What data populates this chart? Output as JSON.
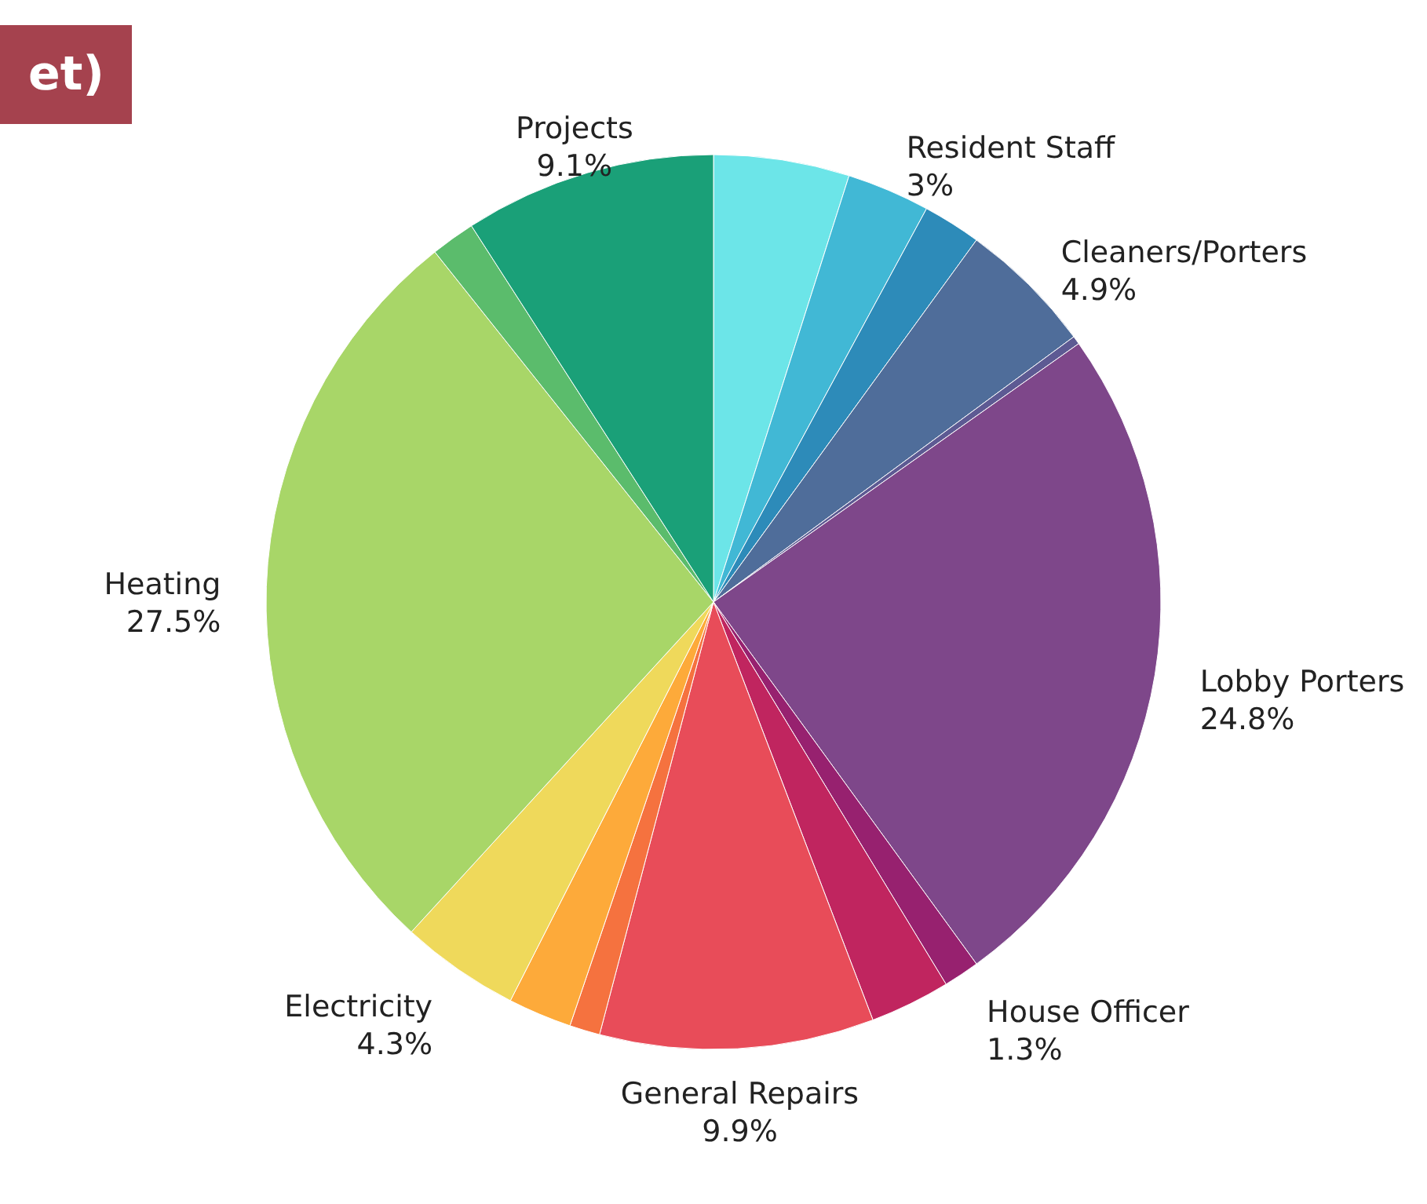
{
  "chart_data": {
    "type": "pie",
    "title": "et)",
    "categories": [
      null,
      "Resident Staff",
      null,
      "Cleaners/Porters",
      null,
      "Lobby Porters",
      "House Officer",
      null,
      "General Repairs",
      null,
      null,
      "Electricity",
      "Heating",
      null,
      "Projects"
    ],
    "values": [
      4.9,
      3,
      2.1,
      4.9,
      0.3,
      24.8,
      1.3,
      2.9,
      9.9,
      1.1,
      2.3,
      4.3,
      27.5,
      1.6,
      9.1
    ],
    "value_labels": [
      null,
      "3%",
      null,
      "4.9%",
      null,
      "24.8%",
      "1.3%",
      null,
      "9.9%",
      null,
      null,
      "4.3%",
      "27.5%",
      null,
      "9.1%"
    ],
    "colors": [
      "#6ce5e8",
      "#41b8d5",
      "#2d8bb9",
      "#4f6d9a",
      "#5d5a93",
      "#7e478a",
      "#97216f",
      "#c0255f",
      "#e84c59",
      "#f5723f",
      "#fdaa3a",
      "#efd95b",
      "#a8d668",
      "#5bbc6c",
      "#1aa078"
    ]
  }
}
